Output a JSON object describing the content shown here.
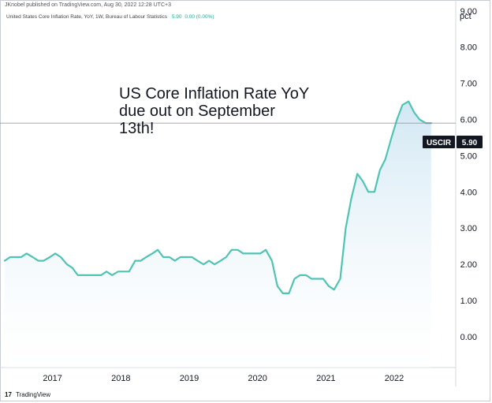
{
  "header": {
    "publisher_line": "JKnobel published on TradingView.com, Aug 30, 2022 12:28 UTC+3",
    "legend_title": "United States Core Inflation Rate, YoY, 1W, Bureau of Labour Statistics",
    "legend_value": "5.90",
    "legend_change": "0.00 (0.00%)"
  },
  "unit_label": "pct",
  "annotation": {
    "lines": [
      "US Core Inflation Rate YoY",
      "due out on September",
      "13th!"
    ]
  },
  "last_value_tag": {
    "symbol": "USCIR",
    "value": "5.90"
  },
  "footer": {
    "icon": "17",
    "brand": "TradingView"
  },
  "colors": {
    "line": "#4fc4b2",
    "fill_top": "#cfe6f3",
    "fill_bottom": "#ffffff",
    "tag_bg": "#131722"
  },
  "chart_data": {
    "type": "area",
    "title": "United States Core Inflation Rate, YoY",
    "xlabel": "",
    "ylabel": "pct",
    "xlim": [
      2016.3,
      2022.9
    ],
    "ylim": [
      -0.85,
      9.3
    ],
    "y_ticks": [
      "9.00",
      "8.00",
      "7.00",
      "6.00",
      "5.00",
      "4.00",
      "3.00",
      "2.00",
      "1.00",
      "0.00"
    ],
    "x_ticks": [
      "2017",
      "2018",
      "2019",
      "2020",
      "2021",
      "2022"
    ],
    "series": [
      {
        "name": "USCIR",
        "x": [
          2016.3,
          2016.38,
          2016.46,
          2016.54,
          2016.62,
          2016.71,
          2016.79,
          2016.87,
          2016.96,
          2017.04,
          2017.12,
          2017.21,
          2017.29,
          2017.37,
          2017.46,
          2017.54,
          2017.62,
          2017.71,
          2017.79,
          2017.87,
          2017.96,
          2018.04,
          2018.12,
          2018.21,
          2018.29,
          2018.37,
          2018.46,
          2018.54,
          2018.62,
          2018.71,
          2018.79,
          2018.87,
          2018.96,
          2019.04,
          2019.12,
          2019.21,
          2019.29,
          2019.37,
          2019.46,
          2019.54,
          2019.62,
          2019.71,
          2019.79,
          2019.87,
          2019.96,
          2020.04,
          2020.12,
          2020.21,
          2020.29,
          2020.37,
          2020.46,
          2020.54,
          2020.62,
          2020.71,
          2020.79,
          2020.87,
          2020.96,
          2021.04,
          2021.12,
          2021.21,
          2021.29,
          2021.37,
          2021.46,
          2021.54,
          2021.62,
          2021.71,
          2021.79,
          2021.87,
          2021.96,
          2022.04,
          2022.12,
          2022.21,
          2022.29,
          2022.37,
          2022.46,
          2022.54
        ],
        "values": [
          2.1,
          2.2,
          2.2,
          2.2,
          2.3,
          2.2,
          2.1,
          2.1,
          2.2,
          2.3,
          2.2,
          2.0,
          1.9,
          1.7,
          1.7,
          1.7,
          1.7,
          1.7,
          1.8,
          1.7,
          1.8,
          1.8,
          1.8,
          2.1,
          2.1,
          2.2,
          2.3,
          2.4,
          2.2,
          2.2,
          2.1,
          2.2,
          2.2,
          2.2,
          2.1,
          2.0,
          2.1,
          2.0,
          2.1,
          2.2,
          2.4,
          2.4,
          2.3,
          2.3,
          2.3,
          2.3,
          2.4,
          2.1,
          1.4,
          1.2,
          1.2,
          1.6,
          1.7,
          1.7,
          1.6,
          1.6,
          1.6,
          1.4,
          1.3,
          1.6,
          3.0,
          3.8,
          4.5,
          4.3,
          4.0,
          4.0,
          4.6,
          4.9,
          5.5,
          6.0,
          6.4,
          6.5,
          6.2,
          6.0,
          5.9,
          5.9
        ]
      }
    ],
    "last_value": 5.9,
    "grid": false,
    "legend": "top-left"
  }
}
